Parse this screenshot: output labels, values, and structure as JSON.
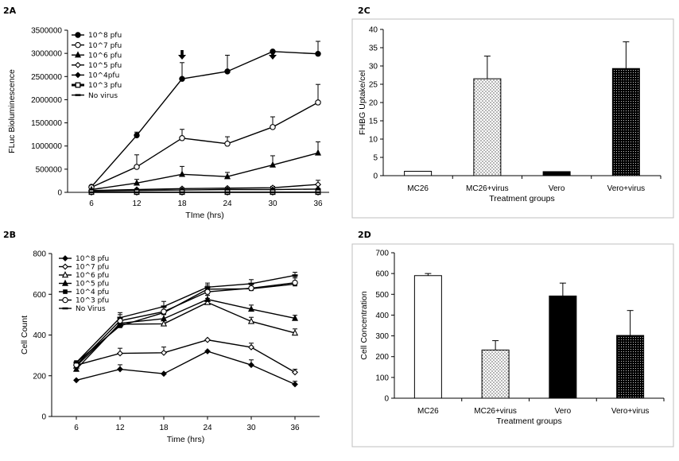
{
  "chart_data": [
    {
      "id": "2A",
      "panel_label": "2A",
      "type": "line",
      "xlabel": "TIme (hrs)",
      "ylabel": "FLuc Bioluminescence",
      "x": [
        6,
        12,
        18,
        24,
        30,
        36
      ],
      "x_ticks": [
        "6",
        "12",
        "18",
        "24",
        "30",
        "36"
      ],
      "ylim": [
        0,
        3500000
      ],
      "y_ticks": [
        "0",
        "500000",
        "1000000",
        "1500000",
        "2000000",
        "2500000",
        "3000000",
        "3500000"
      ],
      "legend_position": "top-left",
      "series": [
        {
          "name": "10^8 pfu",
          "marker": "circle-filled",
          "values": [
            120000,
            1230000,
            2450000,
            2610000,
            3040000,
            2990000
          ],
          "errors": [
            0,
            70000,
            350000,
            350000,
            0,
            270000
          ]
        },
        {
          "name": "10^7 pfu",
          "marker": "circle-open",
          "values": [
            110000,
            550000,
            1170000,
            1050000,
            1410000,
            1940000
          ],
          "errors": [
            0,
            260000,
            190000,
            150000,
            220000,
            390000
          ]
        },
        {
          "name": "10^6 pfu",
          "marker": "triangle-filled",
          "values": [
            60000,
            200000,
            390000,
            340000,
            590000,
            850000
          ],
          "errors": [
            0,
            80000,
            170000,
            90000,
            200000,
            240000
          ]
        },
        {
          "name": "10^5 pfu",
          "marker": "diamond-open",
          "values": [
            40000,
            60000,
            80000,
            90000,
            100000,
            170000
          ],
          "errors": [
            0,
            20000,
            20000,
            20000,
            30000,
            90000
          ]
        },
        {
          "name": "10^4pfu",
          "marker": "diamond-filled",
          "values": [
            30000,
            40000,
            50000,
            60000,
            60000,
            70000
          ],
          "errors": [
            0,
            10000,
            10000,
            10000,
            10000,
            10000
          ]
        },
        {
          "name": "10^3 pfu",
          "marker": "square-open-thick",
          "values": [
            5000,
            5000,
            5000,
            5000,
            5000,
            5000
          ],
          "errors": [
            0,
            0,
            0,
            0,
            0,
            0
          ]
        },
        {
          "name": "No virus",
          "marker": "dash",
          "values": [
            0,
            0,
            0,
            0,
            0,
            0
          ],
          "errors": [
            0,
            0,
            0,
            0,
            0,
            0
          ]
        }
      ],
      "annotations": [
        {
          "label": "arrow",
          "x": 18
        },
        {
          "label": "arrow",
          "x": 30
        }
      ]
    },
    {
      "id": "2B",
      "panel_label": "2B",
      "type": "line",
      "xlabel": "Time (hrs)",
      "ylabel": "Cell Count",
      "x": [
        6,
        12,
        18,
        24,
        30,
        36
      ],
      "x_ticks": [
        "6",
        "12",
        "18",
        "24",
        "30",
        "36"
      ],
      "ylim": [
        0,
        800
      ],
      "y_ticks": [
        "0",
        "200",
        "400",
        "600",
        "800"
      ],
      "legend_position": "top-left",
      "series": [
        {
          "name": "10^8 pfu",
          "marker": "diamond-filled",
          "values": [
            178,
            232,
            210,
            320,
            253,
            158
          ],
          "errors": [
            0,
            22,
            0,
            0,
            25,
            15
          ]
        },
        {
          "name": "10^7 pfu",
          "marker": "diamond-open",
          "values": [
            252,
            310,
            313,
            376,
            340,
            217
          ],
          "errors": [
            0,
            25,
            28,
            0,
            20,
            15
          ]
        },
        {
          "name": "10^6 pfu",
          "marker": "triangle-open",
          "values": [
            248,
            453,
            455,
            560,
            467,
            410
          ],
          "errors": [
            0,
            30,
            20,
            20,
            20,
            20
          ]
        },
        {
          "name": "10^5 pfu",
          "marker": "triangle-filled",
          "values": [
            232,
            458,
            480,
            575,
            527,
            482
          ],
          "errors": [
            0,
            25,
            20,
            20,
            20,
            15
          ]
        },
        {
          "name": "10^4 pfu",
          "marker": "square-filled",
          "values": [
            265,
            445,
            510,
            625,
            627,
            650
          ],
          "errors": [
            0,
            25,
            25,
            20,
            20,
            30
          ]
        },
        {
          "name": "10^3 pfu",
          "marker": "circle-open",
          "values": [
            253,
            470,
            515,
            612,
            630,
            657
          ],
          "errors": [
            0,
            30,
            25,
            20,
            20,
            30
          ]
        },
        {
          "name": "No Virus",
          "marker": "dash",
          "values": [
            265,
            485,
            540,
            635,
            652,
            693
          ],
          "errors": [
            0,
            25,
            25,
            20,
            20,
            15
          ]
        }
      ]
    },
    {
      "id": "2C",
      "panel_label": "2C",
      "type": "bar",
      "xlabel": "Treatment groups",
      "ylabel": "FHBG Uptake/cel",
      "categories": [
        "MC26",
        "MC26+virus",
        "Vero",
        "Vero+virus"
      ],
      "values": [
        1.2,
        26.5,
        1.1,
        29.3
      ],
      "errors": [
        0,
        6.2,
        0,
        7.3
      ],
      "fills": [
        "white",
        "light-dots",
        "black",
        "dark-dots"
      ],
      "ylim": [
        0,
        40
      ],
      "y_ticks": [
        "0",
        "5",
        "10",
        "15",
        "20",
        "25",
        "30",
        "35",
        "40"
      ]
    },
    {
      "id": "2D",
      "panel_label": "2D",
      "type": "bar",
      "xlabel": "Treatment groups",
      "ylabel": "Cell Concentration",
      "categories": [
        "MC26",
        "MC26+virus",
        "Vero",
        "Vero+virus"
      ],
      "values": [
        590,
        232,
        492,
        302
      ],
      "errors": [
        10,
        45,
        62,
        120
      ],
      "fills": [
        "white",
        "light-dots",
        "black",
        "dark-dots"
      ],
      "ylim": [
        0,
        700
      ],
      "y_ticks": [
        "0",
        "100",
        "200",
        "300",
        "400",
        "500",
        "600",
        "700"
      ]
    }
  ]
}
